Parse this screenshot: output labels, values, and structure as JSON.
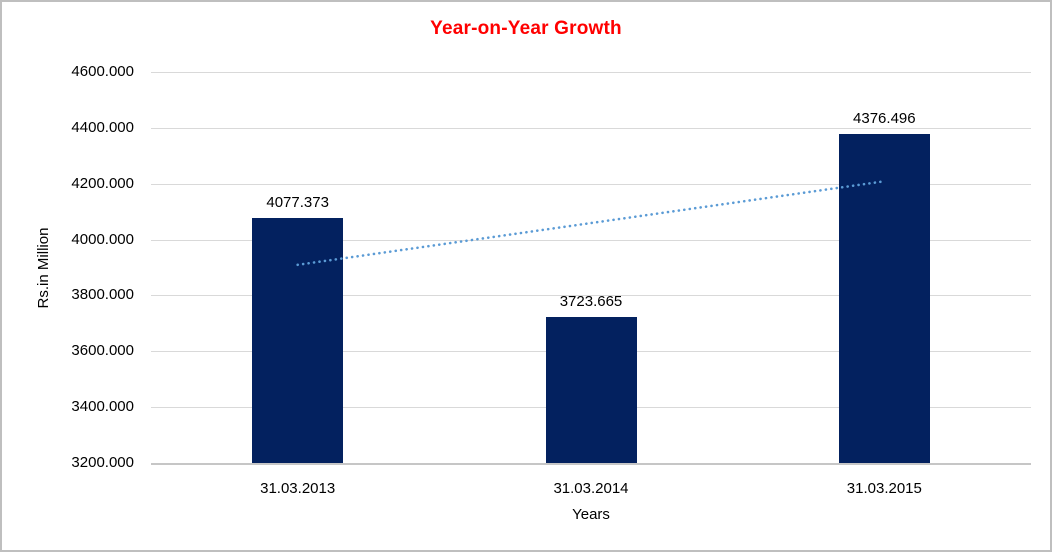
{
  "chart_data": {
    "type": "bar",
    "title": "Year-on-Year Growth",
    "title_color": "#FF0000",
    "xlabel": "Years",
    "ylabel": "Rs.in Million",
    "categories": [
      "31.03.2013",
      "31.03.2014",
      "31.03.2015"
    ],
    "values": [
      4077.373,
      3723.665,
      4376.496
    ],
    "data_labels": [
      "4077.373",
      "3723.665",
      "4376.496"
    ],
    "ylim": [
      3200,
      4600
    ],
    "ytick_step": 200,
    "ytick_labels": [
      "4600.000",
      "4400.000",
      "4200.000",
      "4000.000",
      "3800.000",
      "3600.000",
      "3400.000",
      "3200.000"
    ],
    "grid": true,
    "gridline_color": "#D9D9D9",
    "axis_line_color": "#C6C6C6",
    "bar_color": "#03215F",
    "legend": "none",
    "trendline": {
      "type": "linear",
      "style": "dotted",
      "color": "#5B9BD5",
      "start_value": 3909.6,
      "end_value": 4208.7
    }
  }
}
